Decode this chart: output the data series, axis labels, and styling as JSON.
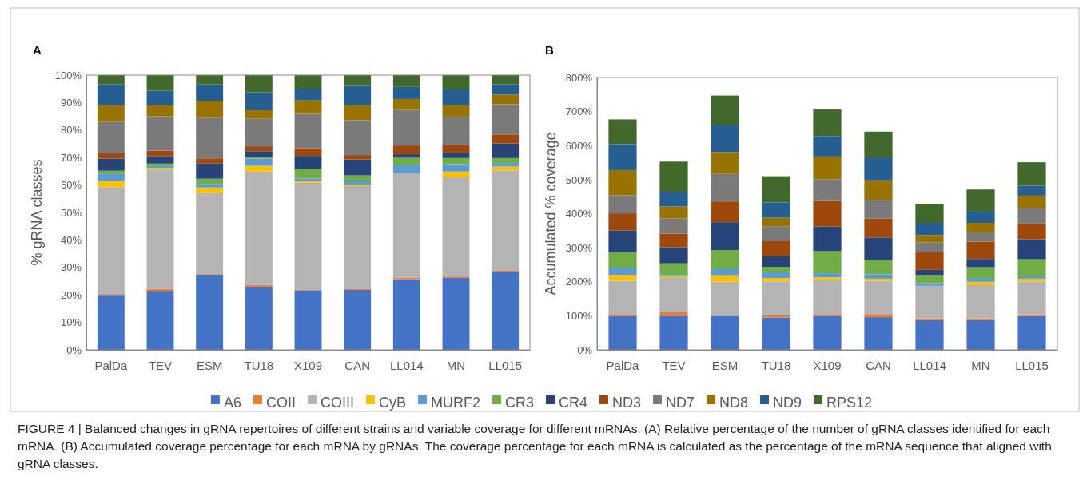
{
  "chart_data": [
    {
      "type": "bar",
      "stacked": true,
      "title": "A",
      "ylabel": "% gRNA classes",
      "categories": [
        "PalDa",
        "TEV",
        "ESM",
        "TU18",
        "X109",
        "CAN",
        "LL014",
        "MN",
        "LL015"
      ],
      "ylim": [
        0,
        100
      ],
      "yticks": [
        {
          "value": 0,
          "label": "0%"
        },
        {
          "value": 10,
          "label": "10%"
        },
        {
          "value": 20,
          "label": "20%"
        },
        {
          "value": 30,
          "label": "30%"
        },
        {
          "value": 40,
          "label": "40%"
        },
        {
          "value": 50,
          "label": "50%"
        },
        {
          "value": 60,
          "label": "60%"
        },
        {
          "value": 70,
          "label": "70%"
        },
        {
          "value": 80,
          "label": "80%"
        },
        {
          "value": 90,
          "label": "90%"
        },
        {
          "value": 100,
          "label": "100%"
        }
      ],
      "legend": "bottom",
      "annotations": [
        "FIGURE 4 | Balanced changes in gRNA repertoires of different strains and variable coverage for different mRNAs. (A) Relative percentage of the number of gRNA classes identified for each mRNA. (B) Accumulated coverage percentage for each mRNA by gRNAs. The coverage percentage for each mRNA is calculated as the percentage of the mRNA sequence that aligned with gRNA classes."
      ],
      "series": [
        {
          "name": "A6",
          "color": "#4472c4",
          "values": [
            20.0,
            21.5,
            27.4,
            23.0,
            21.7,
            21.8,
            25.7,
            26.2,
            28.4
          ]
        },
        {
          "name": "COII",
          "color": "#ed7d31",
          "values": [
            0.3,
            0.7,
            0.2,
            0.7,
            0.3,
            0.5,
            0.6,
            0.5,
            0.4
          ]
        },
        {
          "name": "COIII",
          "color": "#b4b4b4",
          "values": [
            38.9,
            43.4,
            29.4,
            41.2,
            38.8,
            37.3,
            38.1,
            36.1,
            36.5
          ]
        },
        {
          "name": "CyB",
          "color": "#ffc000",
          "values": [
            2.3,
            0.6,
            2.1,
            2.1,
            0.7,
            0.5,
            null,
            2.1,
            1.4
          ]
        },
        {
          "name": "MURF2",
          "color": "#5b9bd5",
          "values": [
            2.5,
            0.7,
            1.3,
            2.6,
            0.9,
            1.4,
            2.9,
            2.7,
            1.3
          ]
        },
        {
          "name": "CR3",
          "color": "#70ad47",
          "values": [
            1.2,
            0.9,
            1.9,
            0.6,
            3.5,
            2.0,
            2.6,
            2.2,
            1.8
          ]
        },
        {
          "name": "CR4",
          "color": "#264478",
          "values": [
            4.4,
            2.6,
            5.5,
            2.1,
            4.7,
            5.8,
            1.3,
            1.9,
            5.3
          ]
        },
        {
          "name": "ND3",
          "color": "#9e480e",
          "values": [
            1.9,
            2.1,
            1.9,
            1.8,
            2.8,
            1.6,
            3.2,
            2.9,
            3.3
          ]
        },
        {
          "name": "ND7",
          "color": "#7a7a7a",
          "values": [
            11.5,
            12.5,
            14.8,
            10.0,
            12.5,
            12.7,
            13.0,
            10.3,
            11.0
          ]
        },
        {
          "name": "ND8",
          "color": "#997300",
          "values": [
            6.1,
            4.1,
            6.2,
            3.1,
            4.9,
            5.5,
            3.9,
            4.2,
            3.5
          ]
        },
        {
          "name": "ND9",
          "color": "#255e91",
          "values": [
            7.5,
            5.2,
            5.9,
            6.5,
            4.2,
            7.0,
            4.4,
            5.7,
            3.7
          ]
        },
        {
          "name": "RPS12",
          "color": "#43682b",
          "values": [
            3.4,
            5.7,
            3.4,
            6.3,
            5.0,
            3.9,
            4.3,
            5.2,
            3.4
          ]
        }
      ]
    },
    {
      "type": "bar",
      "stacked": true,
      "title": "B",
      "ylabel": "Accumulated % coverage",
      "categories": [
        "PalDa",
        "TEV",
        "ESM",
        "TU18",
        "X109",
        "CAN",
        "LL014",
        "MN",
        "LL015"
      ],
      "ylim": [
        0,
        800
      ],
      "yticks": [
        {
          "value": 0,
          "label": "0%"
        },
        {
          "value": 100,
          "label": "100%"
        },
        {
          "value": 200,
          "label": "200%"
        },
        {
          "value": 300,
          "label": "300%"
        },
        {
          "value": 400,
          "label": "400%"
        },
        {
          "value": 500,
          "label": "500%"
        },
        {
          "value": 600,
          "label": "600%"
        },
        {
          "value": 700,
          "label": "700%"
        },
        {
          "value": 800,
          "label": "800%"
        }
      ],
      "series": [
        {
          "color": "#4472c4",
          "values": [
            100,
            100,
            100,
            95,
            100,
            96,
            87,
            87,
            99
          ]
        },
        {
          "color": "#ed7d31",
          "values": [
            5,
            11,
            null,
            6,
            5,
            9,
            5,
            5,
            5
          ]
        },
        {
          "color": "#b4b4b4",
          "values": [
            98,
            100,
            100,
            100,
            100,
            98,
            96,
            98,
            97
          ]
        },
        {
          "color": "#ffc000",
          "values": [
            17,
            4,
            19,
            10,
            8,
            6,
            null,
            10,
            8
          ]
        },
        {
          "color": "#5b9bd5",
          "values": [
            20,
            4,
            18,
            17,
            12,
            13,
            8,
            11,
            8
          ]
        },
        {
          "color": "#70ad47",
          "values": [
            46,
            35,
            56,
            16,
            65,
            42,
            24,
            32,
            49
          ]
        },
        {
          "color": "#264478",
          "values": [
            65,
            47,
            82,
            31,
            72,
            66,
            15,
            24,
            59
          ]
        },
        {
          "color": "#9e480e",
          "values": [
            50,
            40,
            61,
            44,
            75,
            56,
            52,
            51,
            46
          ]
        },
        {
          "color": "#7a7a7a",
          "values": [
            53,
            45,
            82,
            44,
            64,
            55,
            29,
            27,
            45
          ]
        },
        {
          "color": "#997300",
          "values": [
            74,
            35,
            63,
            25,
            67,
            57,
            21,
            28,
            37
          ]
        },
        {
          "color": "#255e91",
          "values": [
            76,
            43,
            80,
            45,
            60,
            68,
            36,
            33,
            29
          ]
        },
        {
          "color": "#43682b",
          "values": [
            73,
            89,
            86,
            77,
            78,
            75,
            56,
            65,
            69
          ]
        }
      ]
    }
  ]
}
